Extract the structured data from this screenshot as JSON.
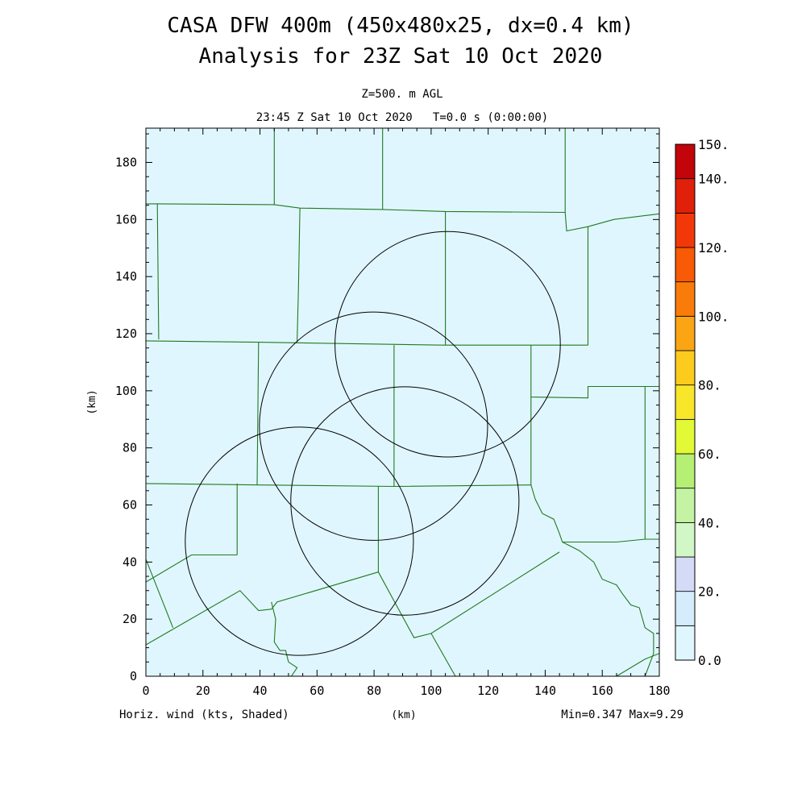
{
  "chart_data": {
    "type": "heatmap",
    "title": "CASA DFW 400m (450x480x25, dx=0.4 km)",
    "subtitle": "Analysis for 23Z Sat 10 Oct 2020",
    "level_label": "Z=500. m AGL",
    "time_label": "23:45 Z Sat 10 Oct 2020   T=0.0 s (0:00:00)",
    "xlabel": "(km)",
    "ylabel": "(km)",
    "xlim": [
      0,
      180
    ],
    "ylim": [
      0,
      192
    ],
    "x_ticks": [
      "0",
      "20",
      "40",
      "60",
      "80",
      "100",
      "120",
      "140",
      "160",
      "180"
    ],
    "y_ticks": [
      "0",
      "20",
      "40",
      "60",
      "80",
      "100",
      "120",
      "140",
      "160",
      "180"
    ],
    "field_label": "Horiz. wind (kts, Shaded)",
    "min_max_label": "Min=0.347 Max=9.29",
    "field_min": 0.347,
    "field_max": 9.29,
    "field_fill_color": "#e0f6ff",
    "boundary_color": "#1f7a1f",
    "grid": false,
    "colorbar": {
      "placement": "right",
      "range": [
        0,
        150
      ],
      "labels": [
        "0.0",
        "20.",
        "40.",
        "60.",
        "80.",
        "100.",
        "120.",
        "140.",
        "150."
      ],
      "label_values": [
        0,
        20,
        40,
        60,
        80,
        100,
        120,
        140,
        150
      ],
      "bins": [
        {
          "from": 0,
          "to": 10,
          "color": "#e0f6ff"
        },
        {
          "from": 10,
          "to": 20,
          "color": "#d4ecfb"
        },
        {
          "from": 20,
          "to": 30,
          "color": "#d3dbf6"
        },
        {
          "from": 30,
          "to": 40,
          "color": "#d2f7c6"
        },
        {
          "from": 40,
          "to": 50,
          "color": "#c4f4a3"
        },
        {
          "from": 50,
          "to": 60,
          "color": "#b5ef74"
        },
        {
          "from": 60,
          "to": 70,
          "color": "#e2f936"
        },
        {
          "from": 70,
          "to": 80,
          "color": "#f8e62a"
        },
        {
          "from": 80,
          "to": 90,
          "color": "#fccb1e"
        },
        {
          "from": 90,
          "to": 100,
          "color": "#fba514"
        },
        {
          "from": 100,
          "to": 110,
          "color": "#f97c0a"
        },
        {
          "from": 110,
          "to": 120,
          "color": "#f85a05"
        },
        {
          "from": 120,
          "to": 130,
          "color": "#f23809"
        },
        {
          "from": 130,
          "to": 140,
          "color": "#e0200a"
        },
        {
          "from": 140,
          "to": 150,
          "color": "#c2050a"
        }
      ]
    },
    "radar_rings": [
      {
        "cx": 105.8,
        "cy": 116.3,
        "r": 39.5
      },
      {
        "cx": 79.8,
        "cy": 87.6,
        "r": 40.0
      },
      {
        "cx": 90.8,
        "cy": 61.4,
        "r": 40.0
      },
      {
        "cx": 53.8,
        "cy": 47.3,
        "r": 40.0
      }
    ],
    "boundaries": [
      [
        [
          0,
          117.5
        ],
        [
          39.5,
          117
        ],
        [
          104,
          116
        ],
        [
          155,
          116
        ]
      ],
      [
        [
          0,
          67.5
        ],
        [
          40,
          67
        ],
        [
          87,
          66.5
        ],
        [
          135,
          67
        ]
      ],
      [
        [
          0,
          165.5
        ],
        [
          4,
          165.5
        ],
        [
          4.5,
          118
        ]
      ],
      [
        [
          4,
          165.5
        ],
        [
          45,
          165.2
        ],
        [
          54,
          164
        ],
        [
          83,
          163.5
        ],
        [
          105,
          162.8
        ],
        [
          147,
          162.5
        ],
        [
          147,
          192
        ]
      ],
      [
        [
          45,
          192
        ],
        [
          45,
          165.2
        ]
      ],
      [
        [
          54,
          164
        ],
        [
          53.5,
          136
        ],
        [
          53,
          117
        ]
      ],
      [
        [
          83,
          192
        ],
        [
          83,
          163.5
        ]
      ],
      [
        [
          105,
          162.8
        ],
        [
          105,
          116
        ]
      ],
      [
        [
          147,
          162.5
        ],
        [
          147.5,
          156
        ],
        [
          155,
          157.5
        ],
        [
          164,
          160
        ],
        [
          180,
          162
        ]
      ],
      [
        [
          155,
          157.5
        ],
        [
          155,
          116
        ]
      ],
      [
        [
          39.5,
          117
        ],
        [
          39,
          67
        ]
      ],
      [
        [
          87,
          116
        ],
        [
          87,
          66.5
        ]
      ],
      [
        [
          135,
          116
        ],
        [
          135,
          97.8
        ],
        [
          155,
          97.5
        ],
        [
          155,
          101.5
        ],
        [
          175,
          101.5
        ],
        [
          180,
          101.5
        ]
      ],
      [
        [
          175,
          101.5
        ],
        [
          175,
          48
        ]
      ],
      [
        [
          135,
          97.8
        ],
        [
          135,
          67
        ],
        [
          136.5,
          62
        ],
        [
          139,
          57
        ],
        [
          143,
          55
        ],
        [
          145,
          50
        ],
        [
          146,
          47
        ],
        [
          165,
          47
        ],
        [
          175,
          48
        ],
        [
          180,
          48
        ]
      ],
      [
        [
          146,
          47
        ],
        [
          152,
          44
        ],
        [
          157,
          40
        ],
        [
          160,
          34
        ],
        [
          165,
          32
        ],
        [
          167,
          29
        ],
        [
          170,
          25
        ],
        [
          173,
          24
        ],
        [
          175,
          17
        ],
        [
          178,
          15
        ],
        [
          178,
          8
        ],
        [
          175,
          0
        ]
      ],
      [
        [
          32,
          67.5
        ],
        [
          32,
          42.5
        ]
      ],
      [
        [
          0,
          33
        ],
        [
          16,
          42.5
        ],
        [
          32,
          42.5
        ]
      ],
      [
        [
          0,
          41
        ],
        [
          9.5,
          17
        ]
      ],
      [
        [
          0,
          11
        ],
        [
          33,
          30
        ],
        [
          39.5,
          23
        ],
        [
          44,
          23.5
        ],
        [
          46,
          26
        ],
        [
          81.5,
          36.5
        ]
      ],
      [
        [
          81.5,
          66.5
        ],
        [
          81.5,
          36.5
        ],
        [
          94,
          13.5
        ],
        [
          100,
          15
        ],
        [
          145,
          43.5
        ]
      ],
      [
        [
          100,
          15
        ],
        [
          108.5,
          0
        ]
      ],
      [
        [
          44,
          26
        ],
        [
          45.5,
          20
        ],
        [
          45,
          12
        ],
        [
          47,
          9
        ],
        [
          49,
          9
        ],
        [
          50,
          5
        ],
        [
          53,
          3
        ],
        [
          51,
          0
        ]
      ],
      [
        [
          165,
          0
        ],
        [
          175,
          6
        ],
        [
          180,
          8
        ]
      ]
    ]
  }
}
